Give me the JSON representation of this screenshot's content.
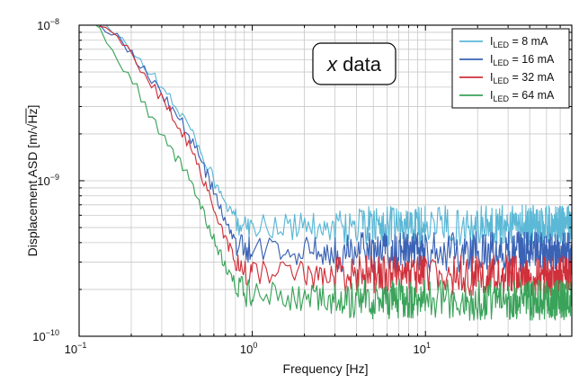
{
  "chart_data": {
    "type": "line",
    "scale": {
      "x": "log",
      "y": "log"
    },
    "xlim": [
      0.1,
      70
    ],
    "ylim": [
      1e-10,
      1e-08
    ],
    "xlabel": "Frequency [Hz]",
    "ylabel": "Displacement ASD [m/√Hz]",
    "ylabel_parts": {
      "main": "Displacement ASD [m/",
      "root": "√",
      "radicand": "Hz",
      "close": "]"
    },
    "x_ticks": [
      {
        "value": 0.1,
        "base": "10",
        "exp": "−1"
      },
      {
        "value": 1,
        "base": "10",
        "exp": "0"
      },
      {
        "value": 10,
        "base": "10",
        "exp": "1"
      }
    ],
    "y_ticks": [
      {
        "value": 1e-10,
        "base": "10",
        "exp": "−10"
      },
      {
        "value": 1e-09,
        "base": "10",
        "exp": "−9"
      },
      {
        "value": 1e-08,
        "base": "10",
        "exp": "−8"
      }
    ],
    "annotation": {
      "italic": "x",
      "text": " data"
    },
    "legend_position": "top-right",
    "series": [
      {
        "name": "I_LED = 8 mA",
        "label_main": "I",
        "label_sub": "LED",
        "label_rest": " = 8 mA",
        "color": "#5bb8d6",
        "x": [
          0.13,
          0.18,
          0.25,
          0.32,
          0.4,
          0.5,
          0.6,
          0.7,
          0.8,
          0.9,
          1.0,
          1.5,
          2,
          3,
          5,
          10,
          20,
          30,
          50,
          70
        ],
        "y": [
          1e-08,
          8e-09,
          5.2e-09,
          3.6e-09,
          2.6e-09,
          1.6e-09,
          1e-09,
          7e-10,
          5.6e-10,
          5.3e-10,
          5.2e-10,
          5e-10,
          5.1e-10,
          5e-10,
          5.1e-10,
          5.15e-10,
          5.1e-10,
          5.2e-10,
          5.15e-10,
          5.2e-10
        ]
      },
      {
        "name": "I_LED = 16 mA",
        "label_main": "I",
        "label_sub": "LED",
        "label_rest": " = 16 mA",
        "color": "#3a62b5",
        "x": [
          0.13,
          0.18,
          0.25,
          0.32,
          0.4,
          0.5,
          0.6,
          0.7,
          0.8,
          0.9,
          1.0,
          1.5,
          2,
          3,
          5,
          10,
          20,
          30,
          50,
          70
        ],
        "y": [
          1e-08,
          7.8e-09,
          5e-09,
          3.3e-09,
          2.3e-09,
          1.4e-09,
          8.5e-10,
          5.5e-10,
          4e-10,
          3.6e-10,
          3.6e-10,
          3.5e-10,
          3.55e-10,
          3.5e-10,
          3.5e-10,
          3.45e-10,
          3.5e-10,
          3.5e-10,
          3.45e-10,
          3.5e-10
        ]
      },
      {
        "name": "I_LED = 32 mA",
        "label_main": "I",
        "label_sub": "LED",
        "label_rest": " = 32 mA",
        "color": "#d0303a",
        "x": [
          0.13,
          0.18,
          0.25,
          0.32,
          0.4,
          0.5,
          0.6,
          0.7,
          0.8,
          0.9,
          1.0,
          1.5,
          2,
          3,
          5,
          10,
          20,
          30,
          50,
          70
        ],
        "y": [
          1e-08,
          7.5e-09,
          4.6e-09,
          3e-09,
          2e-09,
          1.15e-09,
          6.8e-10,
          4.3e-10,
          3e-10,
          2.6e-10,
          2.5e-10,
          2.45e-10,
          2.5e-10,
          2.45e-10,
          2.45e-10,
          2.5e-10,
          2.45e-10,
          2.5e-10,
          2.45e-10,
          2.5e-10
        ]
      },
      {
        "name": "I_LED = 64 mA",
        "label_main": "I",
        "label_sub": "LED",
        "label_rest": " = 64 mA",
        "color": "#3aa35a",
        "x": [
          0.12,
          0.15,
          0.2,
          0.25,
          0.3,
          0.4,
          0.5,
          0.6,
          0.7,
          0.8,
          0.9,
          1.0,
          1.5,
          2,
          3,
          5,
          10,
          20,
          30,
          50,
          70
        ],
        "y": [
          1e-08,
          7.5e-09,
          4.6e-09,
          2.8e-09,
          1.9e-09,
          1.2e-09,
          7.2e-10,
          4.2e-10,
          2.8e-10,
          2.2e-10,
          1.9e-10,
          1.85e-10,
          1.8e-10,
          1.75e-10,
          1.7e-10,
          1.72e-10,
          1.75e-10,
          1.7e-10,
          1.72e-10,
          1.7e-10,
          1.7e-10
        ]
      }
    ]
  }
}
